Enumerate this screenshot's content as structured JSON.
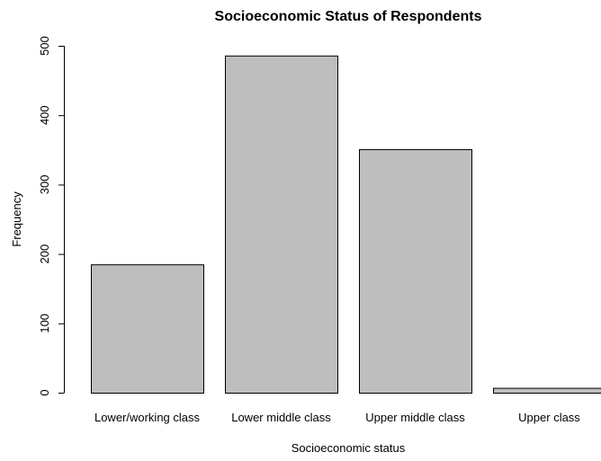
{
  "chart_data": {
    "type": "bar",
    "title": "Socioeconomic Status of Respondents",
    "xlabel": "Socioeconomic status",
    "ylabel": "Frequency",
    "categories": [
      "Lower/working class",
      "Lower middle class",
      "Upper middle class",
      "Upper class"
    ],
    "values": [
      185,
      486,
      351,
      7
    ],
    "ylim": [
      0,
      500
    ],
    "yticks": [
      "0",
      "100",
      "200",
      "300",
      "400",
      "500"
    ],
    "grid": false,
    "legend": "none",
    "colors": {
      "bar_fill": "#bebebe",
      "bar_stroke": "#000000",
      "axis": "#000000",
      "background": "#ffffff"
    }
  }
}
